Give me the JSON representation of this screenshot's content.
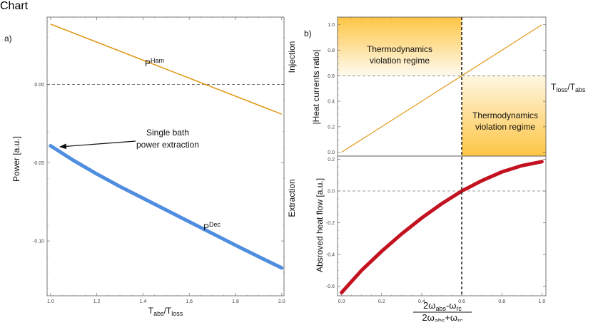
{
  "chart_data": [
    {
      "type": "line",
      "panel_label": "a)",
      "xlabel_main": "T",
      "xlabel_sub1": "abs",
      "xlabel_mid": "/T",
      "xlabel_sub2": "loss",
      "ylabel": "Power [a.u.]",
      "side_top": "Injection",
      "side_bottom": "Extraction",
      "xlim": [
        0.985,
        2.01
      ],
      "ylim": [
        -0.135,
        0.043
      ],
      "x_ticks": [
        "1.0",
        "1.2",
        "1.4",
        "1.6",
        "1.8",
        "2.0"
      ],
      "x_tick_values": [
        1.0,
        1.2,
        1.4,
        1.6,
        1.8,
        2.0
      ],
      "y_ticks": [
        "0.00",
        "-0.05",
        "-0.10"
      ],
      "y_tick_values": [
        0.0,
        -0.05,
        -0.1
      ],
      "series": [
        {
          "label_main": "P",
          "label_sup": "Ham",
          "color": "#e09a1a",
          "x": [
            1.0,
            1.2,
            1.4,
            1.6,
            1.8,
            2.0
          ],
          "y": [
            0.0385,
            0.027,
            0.0155,
            0.004,
            -0.0075,
            -0.019
          ]
        },
        {
          "label_main": "P",
          "label_sup": "Dec",
          "color": "#4f8de0",
          "x": [
            1.0,
            1.1,
            1.2,
            1.3,
            1.4,
            1.5,
            1.6,
            1.7,
            1.8,
            1.9,
            2.0
          ],
          "y": [
            -0.0392,
            -0.0486,
            -0.0572,
            -0.0652,
            -0.0727,
            -0.0802,
            -0.0877,
            -0.0952,
            -0.1027,
            -0.11,
            -0.1172
          ]
        }
      ],
      "annotation": {
        "line1": "Single bath",
        "line2": "power extraction"
      }
    },
    {
      "type": "line",
      "panel_label": "b)",
      "ylabel": "|Heat currents ratio|",
      "ylim": [
        -0.03,
        1.06
      ],
      "xlim": [
        -0.02,
        1.02
      ],
      "y_ticks": [
        "0.0",
        "0.2",
        "0.4",
        "0.6",
        "0.8",
        "1.0"
      ],
      "y_tick_values": [
        0,
        0.2,
        0.4,
        0.6,
        0.8,
        1.0
      ],
      "x": [
        0,
        1
      ],
      "y": [
        0,
        1
      ],
      "hline_value": 0.6,
      "hline_label_main": "T",
      "hline_label_sub1": "loss",
      "hline_label_mid": "/T",
      "hline_label_sub2": "abs",
      "region_text": {
        "line1": "Thermodynamics",
        "line2": "violation regime"
      },
      "color": "#e09a1a"
    },
    {
      "type": "line",
      "ylabel": "Absroved heat flow [a.u.]",
      "side_label": "Extraction",
      "xlim": [
        -0.02,
        1.02
      ],
      "ylim": [
        -0.66,
        0.22
      ],
      "x_ticks": [
        "0.0",
        "0.2",
        "0.4",
        "0.6",
        "0.8",
        "1.0"
      ],
      "x_tick_values": [
        0,
        0.2,
        0.4,
        0.6,
        0.8,
        1.0
      ],
      "y_ticks": [
        "0.2",
        "0.0",
        "-0.2",
        "-0.4",
        "-0.6"
      ],
      "y_tick_values": [
        0.2,
        0.0,
        -0.2,
        -0.4,
        -0.6
      ],
      "vline_value": 0.6,
      "color": "#c3121f",
      "x": [
        0,
        0.1,
        0.2,
        0.3,
        0.4,
        0.5,
        0.6,
        0.7,
        0.8,
        0.9,
        1.0
      ],
      "y": [
        -0.64,
        -0.5,
        -0.38,
        -0.27,
        -0.17,
        -0.08,
        0.0,
        0.065,
        0.12,
        0.16,
        0.185
      ],
      "xlabel_num": "2ω",
      "xlabel_num_sub": "abs",
      "xlabel_num_rest": "-ω",
      "xlabel_num_sub2": "rc",
      "xlabel_den": "2ω",
      "xlabel_den_sub": "abs",
      "xlabel_den_rest": "+ω",
      "xlabel_den_sub2": "rc"
    }
  ]
}
